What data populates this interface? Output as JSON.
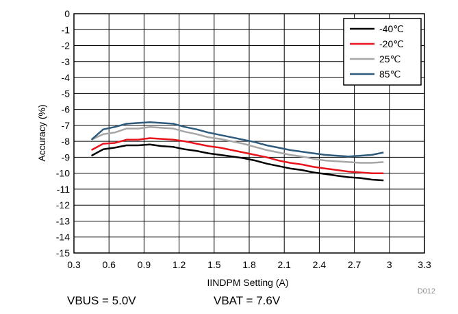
{
  "chart_data": {
    "type": "line",
    "title": "",
    "xlabel": "IINDPM Setting (A)",
    "ylabel": "Accuracy (%)",
    "xlim": [
      0.3,
      3.3
    ],
    "ylim": [
      -15,
      0
    ],
    "xticks": [
      "0.3",
      "0.6",
      "0.9",
      "1.2",
      "1.5",
      "1.8",
      "2.1",
      "2.4",
      "2.7",
      "3",
      "3.3"
    ],
    "yticks": [
      "0",
      "-1",
      "-2",
      "-3",
      "-4",
      "-5",
      "-6",
      "-7",
      "-8",
      "-9",
      "-10",
      "-11",
      "-12",
      "-13",
      "-14",
      "-15"
    ],
    "grid": true,
    "legend_position": "top-right",
    "x": [
      0.45,
      0.55,
      0.65,
      0.75,
      0.85,
      0.95,
      1.05,
      1.15,
      1.25,
      1.35,
      1.45,
      1.55,
      1.65,
      1.75,
      1.85,
      1.95,
      2.05,
      2.15,
      2.25,
      2.35,
      2.45,
      2.55,
      2.65,
      2.75,
      2.85,
      2.95
    ],
    "series": [
      {
        "name": "-40℃",
        "color": "#000000",
        "values": [
          -8.9,
          -8.5,
          -8.4,
          -8.25,
          -8.25,
          -8.2,
          -8.3,
          -8.35,
          -8.5,
          -8.6,
          -8.75,
          -8.85,
          -8.95,
          -9.05,
          -9.2,
          -9.4,
          -9.55,
          -9.7,
          -9.8,
          -9.95,
          -10.05,
          -10.15,
          -10.25,
          -10.3,
          -10.4,
          -10.45
        ]
      },
      {
        "name": "-20℃",
        "color": "#e8141c",
        "values": [
          -8.55,
          -8.15,
          -8.1,
          -7.9,
          -7.9,
          -7.8,
          -7.85,
          -7.9,
          -8.0,
          -8.15,
          -8.3,
          -8.4,
          -8.55,
          -8.7,
          -8.85,
          -9.0,
          -9.2,
          -9.35,
          -9.45,
          -9.6,
          -9.7,
          -9.8,
          -9.9,
          -9.95,
          -10.0,
          -10.0
        ]
      },
      {
        "name": "25℃",
        "color": "#a6a6a6",
        "values": [
          -7.9,
          -7.55,
          -7.45,
          -7.2,
          -7.2,
          -7.1,
          -7.15,
          -7.2,
          -7.4,
          -7.55,
          -7.75,
          -7.85,
          -8.0,
          -8.15,
          -8.35,
          -8.55,
          -8.7,
          -8.85,
          -8.95,
          -9.1,
          -9.2,
          -9.25,
          -9.3,
          -9.35,
          -9.35,
          -9.3
        ]
      },
      {
        "name": "85℃",
        "color": "#2e5a7c",
        "values": [
          -7.9,
          -7.25,
          -7.1,
          -6.9,
          -6.85,
          -6.8,
          -6.85,
          -6.9,
          -7.1,
          -7.25,
          -7.45,
          -7.6,
          -7.75,
          -7.9,
          -8.05,
          -8.25,
          -8.4,
          -8.55,
          -8.65,
          -8.75,
          -8.85,
          -8.9,
          -8.95,
          -8.9,
          -8.85,
          -8.7
        ]
      }
    ]
  },
  "figure_id": "D012",
  "caption": {
    "vbus": "VBUS = 5.0V",
    "vbat": "VBAT = 7.6V"
  }
}
